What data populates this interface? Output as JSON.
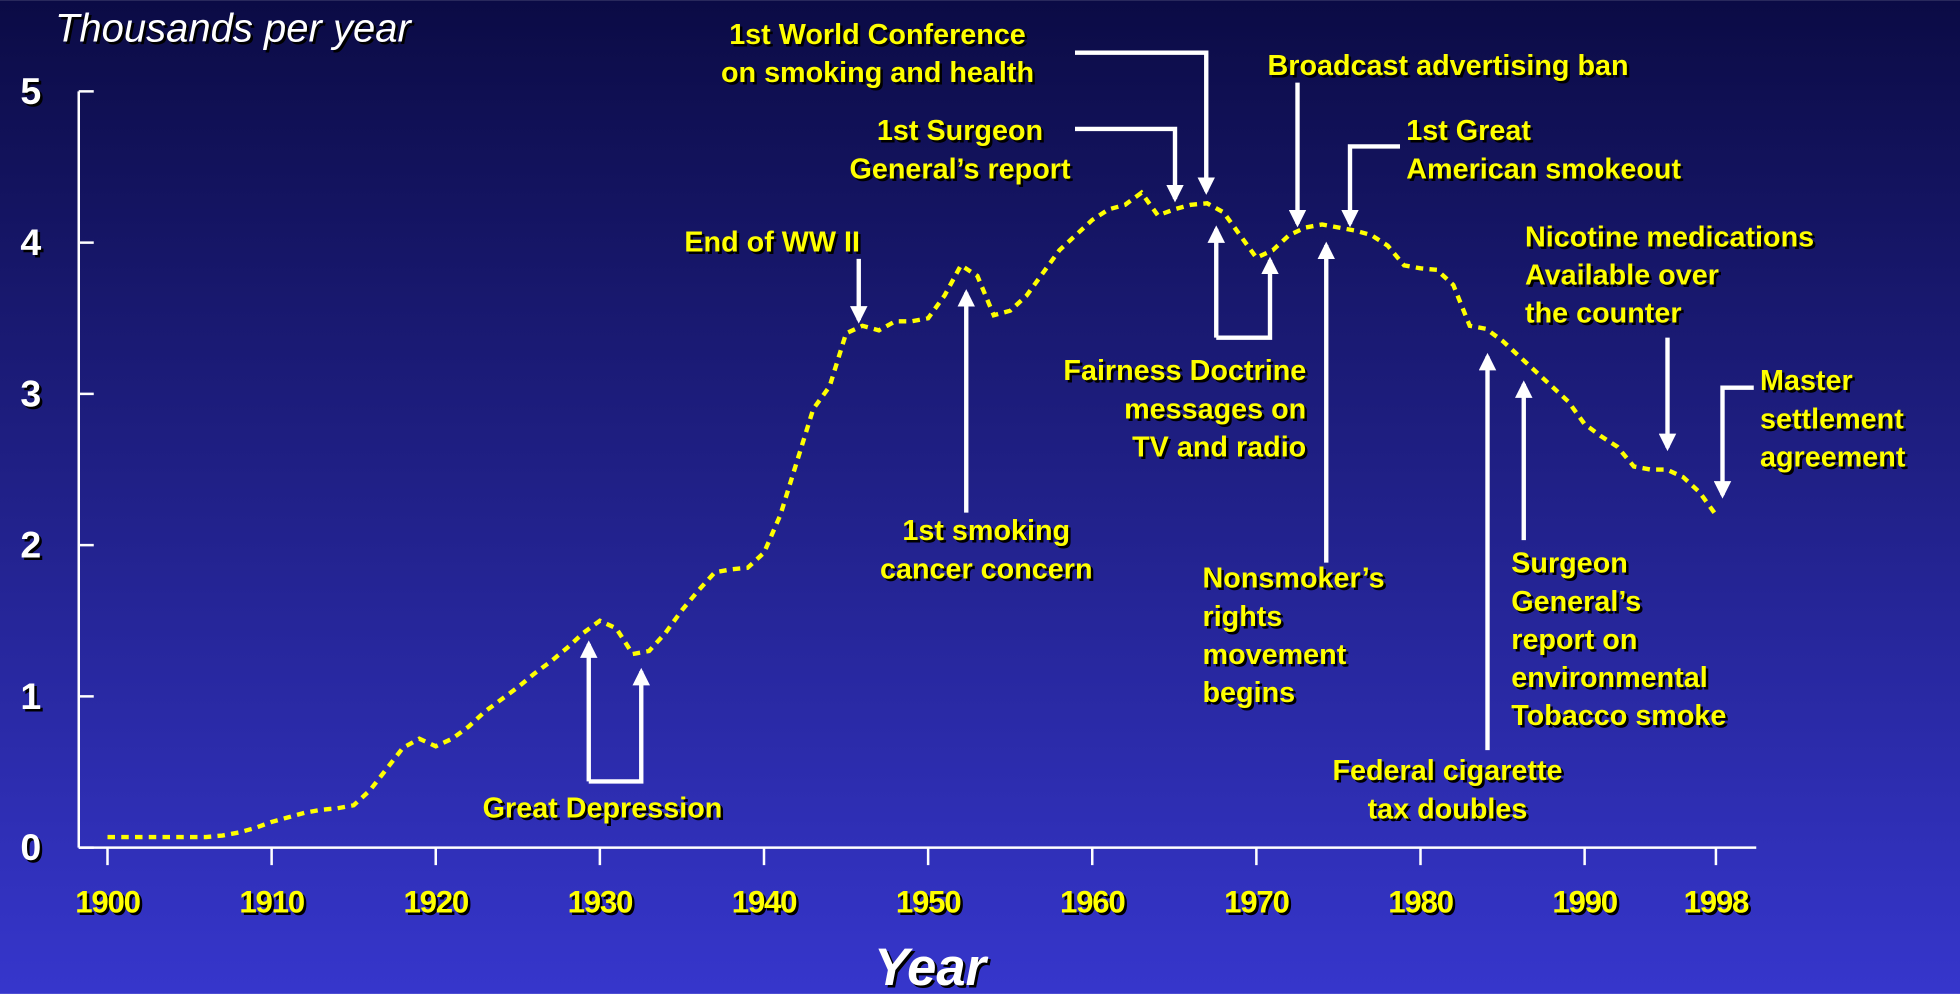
{
  "chart_data": {
    "type": "line",
    "y_label": "Thousands per year",
    "x_label": "Year",
    "x": [
      1900,
      1901,
      1902,
      1903,
      1904,
      1905,
      1906,
      1907,
      1908,
      1909,
      1910,
      1911,
      1912,
      1913,
      1914,
      1915,
      1916,
      1917,
      1918,
      1919,
      1920,
      1921,
      1922,
      1923,
      1924,
      1925,
      1926,
      1927,
      1928,
      1929,
      1930,
      1931,
      1932,
      1933,
      1934,
      1935,
      1936,
      1937,
      1938,
      1939,
      1940,
      1941,
      1942,
      1943,
      1944,
      1945,
      1946,
      1947,
      1948,
      1949,
      1950,
      1951,
      1952,
      1953,
      1954,
      1955,
      1956,
      1957,
      1958,
      1959,
      1960,
      1961,
      1962,
      1963,
      1964,
      1965,
      1966,
      1967,
      1968,
      1969,
      1970,
      1971,
      1972,
      1973,
      1974,
      1975,
      1976,
      1977,
      1978,
      1979,
      1980,
      1981,
      1982,
      1983,
      1984,
      1985,
      1986,
      1987,
      1988,
      1989,
      1990,
      1991,
      1992,
      1993,
      1994,
      1995,
      1996,
      1997,
      1998
    ],
    "series": [
      {
        "color": "#ffff00",
        "values": [
          0.07,
          0.07,
          0.07,
          0.07,
          0.07,
          0.07,
          0.07,
          0.08,
          0.1,
          0.13,
          0.17,
          0.2,
          0.23,
          0.25,
          0.26,
          0.28,
          0.38,
          0.52,
          0.66,
          0.72,
          0.67,
          0.72,
          0.8,
          0.9,
          0.98,
          1.06,
          1.15,
          1.23,
          1.32,
          1.42,
          1.5,
          1.45,
          1.28,
          1.3,
          1.42,
          1.57,
          1.7,
          1.82,
          1.84,
          1.85,
          1.95,
          2.2,
          2.55,
          2.9,
          3.05,
          3.4,
          3.45,
          3.42,
          3.48,
          3.48,
          3.5,
          3.65,
          3.85,
          3.78,
          3.52,
          3.55,
          3.65,
          3.8,
          3.95,
          4.05,
          4.15,
          4.22,
          4.25,
          4.33,
          4.18,
          4.22,
          4.25,
          4.26,
          4.2,
          4.05,
          3.9,
          3.95,
          4.05,
          4.1,
          4.12,
          4.1,
          4.08,
          4.05,
          3.98,
          3.85,
          3.83,
          3.82,
          3.72,
          3.45,
          3.43,
          3.35,
          3.25,
          3.15,
          3.05,
          2.95,
          2.8,
          2.72,
          2.65,
          2.52,
          2.5,
          2.5,
          2.45,
          2.35,
          2.2
        ]
      }
    ],
    "xlim": [
      1900,
      1998
    ],
    "xticks": [
      1900,
      1910,
      1920,
      1930,
      1940,
      1950,
      1960,
      1970,
      1980,
      1990,
      1998
    ],
    "ylim": [
      0,
      5
    ],
    "yticks": [
      0,
      1,
      2,
      3,
      4,
      5
    ],
    "annotations": [
      {
        "lines": [
          "Great Depression"
        ]
      },
      {
        "lines": [
          "End of WW II"
        ]
      },
      {
        "lines": [
          "1st smoking",
          "cancer concern"
        ]
      },
      {
        "lines": [
          "1st Surgeon",
          "General’s report"
        ]
      },
      {
        "lines": [
          "1st World Conference",
          "on smoking and health"
        ]
      },
      {
        "lines": [
          "Broadcast advertising ban"
        ]
      },
      {
        "lines": [
          "1st Great",
          "American smokeout"
        ]
      },
      {
        "lines": [
          "Fairness Doctrine",
          "messages on",
          "TV and radio"
        ]
      },
      {
        "lines": [
          "Nonsmoker’s",
          "rights",
          "movement",
          "begins"
        ]
      },
      {
        "lines": [
          "Nicotine medications",
          "Available over",
          "the counter"
        ]
      },
      {
        "lines": [
          "Master",
          "settlement",
          "agreement"
        ]
      },
      {
        "lines": [
          "Surgeon",
          "General’s",
          "report on",
          "environmental",
          "Tobacco smoke"
        ]
      },
      {
        "lines": [
          "Federal cigarette",
          "tax doubles"
        ]
      }
    ]
  }
}
